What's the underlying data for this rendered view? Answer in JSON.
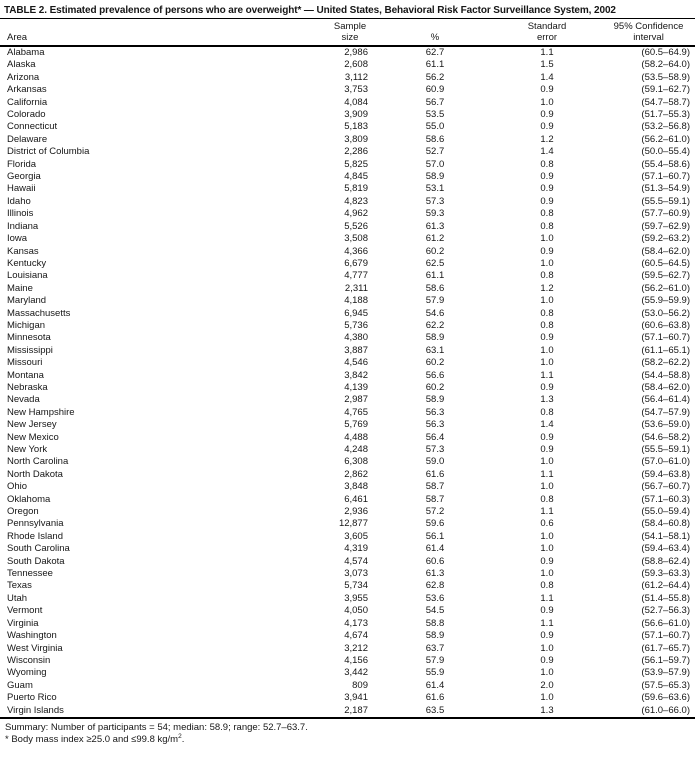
{
  "title": "TABLE 2. Estimated prevalence of persons who are overweight* — United States, Behavioral Risk Factor Surveillance System, 2002",
  "header": {
    "area": "Area",
    "sample_size_line1": "Sample",
    "sample_size_line2": "size",
    "percent": "%",
    "standard_error_line1": "Standard",
    "standard_error_line2": "error",
    "confidence_line1": "95% Confidence",
    "confidence_line2": "interval"
  },
  "rows": [
    [
      "Alabama",
      "2,986",
      "62.7",
      "1.1",
      "(60.5–64.9)"
    ],
    [
      "Alaska",
      "2,608",
      "61.1",
      "1.5",
      "(58.2–64.0)"
    ],
    [
      "Arizona",
      "3,112",
      "56.2",
      "1.4",
      "(53.5–58.9)"
    ],
    [
      "Arkansas",
      "3,753",
      "60.9",
      "0.9",
      "(59.1–62.7)"
    ],
    [
      "California",
      "4,084",
      "56.7",
      "1.0",
      "(54.7–58.7)"
    ],
    [
      "Colorado",
      "3,909",
      "53.5",
      "0.9",
      "(51.7–55.3)"
    ],
    [
      "Connecticut",
      "5,183",
      "55.0",
      "0.9",
      "(53.2–56.8)"
    ],
    [
      "Delaware",
      "3,809",
      "58.6",
      "1.2",
      "(56.2–61.0)"
    ],
    [
      "District of Columbia",
      "2,286",
      "52.7",
      "1.4",
      "(50.0–55.4)"
    ],
    [
      "Florida",
      "5,825",
      "57.0",
      "0.8",
      "(55.4–58.6)"
    ],
    [
      "Georgia",
      "4,845",
      "58.9",
      "0.9",
      "(57.1–60.7)"
    ],
    [
      "Hawaii",
      "5,819",
      "53.1",
      "0.9",
      "(51.3–54.9)"
    ],
    [
      "Idaho",
      "4,823",
      "57.3",
      "0.9",
      "(55.5–59.1)"
    ],
    [
      "Illinois",
      "4,962",
      "59.3",
      "0.8",
      "(57.7–60.9)"
    ],
    [
      "Indiana",
      "5,526",
      "61.3",
      "0.8",
      "(59.7–62.9)"
    ],
    [
      "Iowa",
      "3,508",
      "61.2",
      "1.0",
      "(59.2–63.2)"
    ],
    [
      "Kansas",
      "4,366",
      "60.2",
      "0.9",
      "(58.4–62.0)"
    ],
    [
      "Kentucky",
      "6,679",
      "62.5",
      "1.0",
      "(60.5–64.5)"
    ],
    [
      "Louisiana",
      "4,777",
      "61.1",
      "0.8",
      "(59.5–62.7)"
    ],
    [
      "Maine",
      "2,311",
      "58.6",
      "1.2",
      "(56.2–61.0)"
    ],
    [
      "Maryland",
      "4,188",
      "57.9",
      "1.0",
      "(55.9–59.9)"
    ],
    [
      "Massachusetts",
      "6,945",
      "54.6",
      "0.8",
      "(53.0–56.2)"
    ],
    [
      "Michigan",
      "5,736",
      "62.2",
      "0.8",
      "(60.6–63.8)"
    ],
    [
      "Minnesota",
      "4,380",
      "58.9",
      "0.9",
      "(57.1–60.7)"
    ],
    [
      "Mississippi",
      "3,887",
      "63.1",
      "1.0",
      "(61.1–65.1)"
    ],
    [
      "Missouri",
      "4,546",
      "60.2",
      "1.0",
      "(58.2–62.2)"
    ],
    [
      "Montana",
      "3,842",
      "56.6",
      "1.1",
      "(54.4–58.8)"
    ],
    [
      "Nebraska",
      "4,139",
      "60.2",
      "0.9",
      "(58.4–62.0)"
    ],
    [
      "Nevada",
      "2,987",
      "58.9",
      "1.3",
      "(56.4–61.4)"
    ],
    [
      "New Hampshire",
      "4,765",
      "56.3",
      "0.8",
      "(54.7–57.9)"
    ],
    [
      "New Jersey",
      "5,769",
      "56.3",
      "1.4",
      "(53.6–59.0)"
    ],
    [
      "New Mexico",
      "4,488",
      "56.4",
      "0.9",
      "(54.6–58.2)"
    ],
    [
      "New York",
      "4,248",
      "57.3",
      "0.9",
      "(55.5–59.1)"
    ],
    [
      "North Carolina",
      "6,308",
      "59.0",
      "1.0",
      "(57.0–61.0)"
    ],
    [
      "North Dakota",
      "2,862",
      "61.6",
      "1.1",
      "(59.4–63.8)"
    ],
    [
      "Ohio",
      "3,848",
      "58.7",
      "1.0",
      "(56.7–60.7)"
    ],
    [
      "Oklahoma",
      "6,461",
      "58.7",
      "0.8",
      "(57.1–60.3)"
    ],
    [
      "Oregon",
      "2,936",
      "57.2",
      "1.1",
      "(55.0–59.4)"
    ],
    [
      "Pennsylvania",
      "12,877",
      "59.6",
      "0.6",
      "(58.4–60.8)"
    ],
    [
      "Rhode Island",
      "3,605",
      "56.1",
      "1.0",
      "(54.1–58.1)"
    ],
    [
      "South Carolina",
      "4,319",
      "61.4",
      "1.0",
      "(59.4–63.4)"
    ],
    [
      "South Dakota",
      "4,574",
      "60.6",
      "0.9",
      "(58.8–62.4)"
    ],
    [
      "Tennessee",
      "3,073",
      "61.3",
      "1.0",
      "(59.3–63.3)"
    ],
    [
      "Texas",
      "5,734",
      "62.8",
      "0.8",
      "(61.2–64.4)"
    ],
    [
      "Utah",
      "3,955",
      "53.6",
      "1.1",
      "(51.4–55.8)"
    ],
    [
      "Vermont",
      "4,050",
      "54.5",
      "0.9",
      "(52.7–56.3)"
    ],
    [
      "Virginia",
      "4,173",
      "58.8",
      "1.1",
      "(56.6–61.0)"
    ],
    [
      "Washington",
      "4,674",
      "58.9",
      "0.9",
      "(57.1–60.7)"
    ],
    [
      "West Virginia",
      "3,212",
      "63.7",
      "1.0",
      "(61.7–65.7)"
    ],
    [
      "Wisconsin",
      "4,156",
      "57.9",
      "0.9",
      "(56.1–59.7)"
    ],
    [
      "Wyoming",
      "3,442",
      "55.9",
      "1.0",
      "(53.9–57.9)"
    ],
    [
      "Guam",
      "809",
      "61.4",
      "2.0",
      "(57.5–65.3)"
    ],
    [
      "Puerto Rico",
      "3,941",
      "61.6",
      "1.0",
      "(59.6–63.6)"
    ],
    [
      "Virgin Islands",
      "2,187",
      "63.5",
      "1.3",
      "(61.0–66.0)"
    ]
  ],
  "footer": {
    "summary": "Summary: Number of participants = 54; median: 58.9; range: 52.7–63.7.",
    "footnote_pre": "* Body mass index ≥25.0 and ≤99.8 kg/m",
    "footnote_sup": "2",
    "footnote_post": "."
  }
}
